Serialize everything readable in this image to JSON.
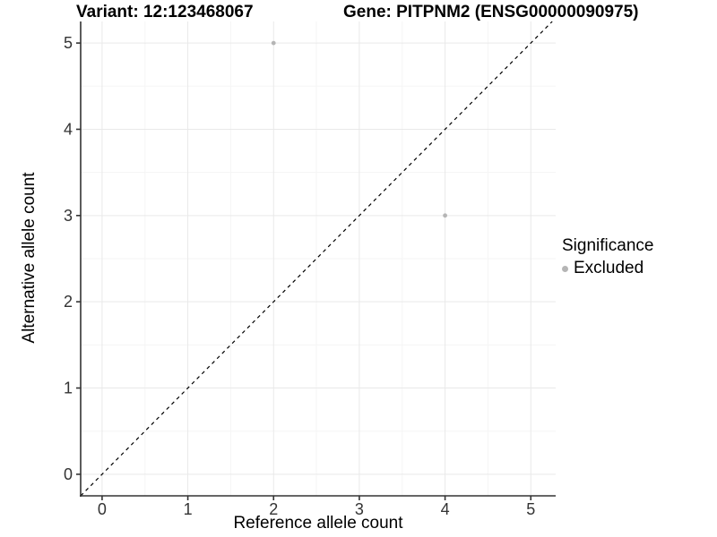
{
  "chart_data": {
    "type": "scatter",
    "title_left": "Variant: 12:123468067",
    "title_right": "Gene: PITPNM2 (ENSG00000090975)",
    "xlabel": "Reference allele count",
    "ylabel": "Alternative allele count",
    "xticks": [
      0,
      1,
      2,
      3,
      4,
      5
    ],
    "yticks": [
      0,
      1,
      2,
      3,
      4,
      5
    ],
    "xlim": [
      -0.25,
      5.29
    ],
    "ylim": [
      -0.25,
      5.25
    ],
    "grid": {
      "major_step": 1,
      "minor_step": 0.5
    },
    "reference_line": {
      "type": "identity",
      "style": "dashed",
      "equation": "y = x"
    },
    "series": [
      {
        "name": "Excluded",
        "points": [
          {
            "x": 2,
            "y": 5
          },
          {
            "x": 4,
            "y": 3
          }
        ]
      }
    ],
    "legend": {
      "title": "Significance",
      "position": "right",
      "items": [
        {
          "label": "Excluded"
        }
      ]
    },
    "colors": {
      "point_excluded": "#b5b5b5",
      "grid_major": "#e9e9e9",
      "grid_minor": "#f5f5f5",
      "axis_line": "#333333",
      "tick_text": "#333333",
      "reference_line": "#000000",
      "background": "#ffffff",
      "title_text": "#000000"
    }
  }
}
